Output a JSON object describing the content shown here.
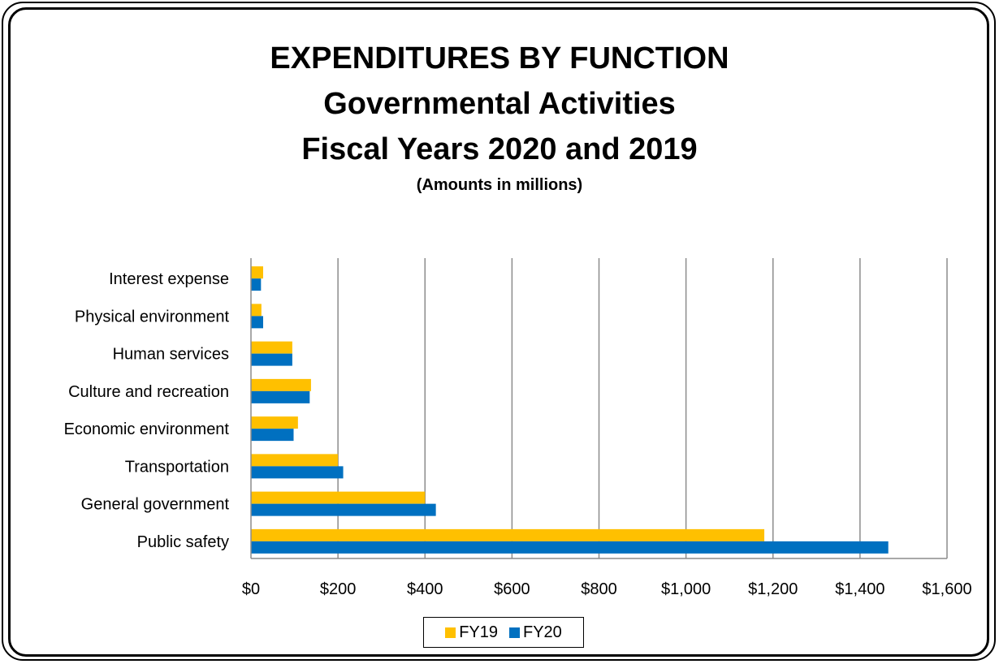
{
  "title": {
    "line1": "EXPENDITURES BY FUNCTION",
    "line2": "Governmental Activities",
    "line3": "Fiscal Years 2020 and 2019",
    "subtitle": "(Amounts in millions)"
  },
  "chart_data": {
    "type": "bar",
    "orientation": "horizontal",
    "categories": [
      "Public safety",
      "General government",
      "Transportation",
      "Economic environment",
      "Culture and recreation",
      "Human services",
      "Physical environment",
      "Interest expense"
    ],
    "series": [
      {
        "name": "FY19",
        "color": "#FFC000",
        "values": [
          1180,
          400,
          200,
          108,
          138,
          95,
          24,
          28
        ]
      },
      {
        "name": "FY20",
        "color": "#0070C0",
        "values": [
          1465,
          425,
          212,
          98,
          135,
          95,
          28,
          23
        ]
      }
    ],
    "xlim": [
      0,
      1600
    ],
    "xticks": [
      0,
      200,
      400,
      600,
      800,
      1000,
      1200,
      1400,
      1600
    ],
    "xtick_labels": [
      "$0",
      "$200",
      "$400",
      "$600",
      "$800",
      "$1,000",
      "$1,200",
      "$1,400",
      "$1,600"
    ],
    "grid": true,
    "legend_position": "bottom"
  }
}
